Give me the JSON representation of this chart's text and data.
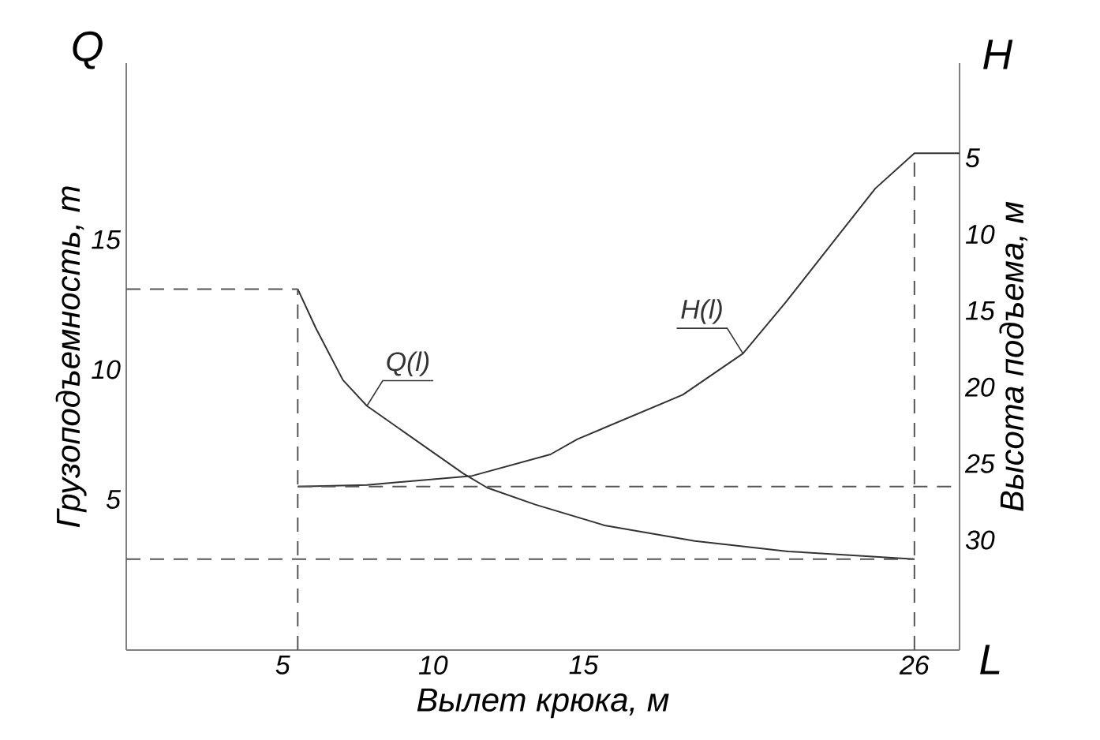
{
  "chart_data": {
    "type": "line",
    "xlabel": "Вылет крюка, м",
    "ylabel": "Грузоподъемность, т",
    "y2label": "Высота подъема, м",
    "annotations": [
      "Q",
      "H",
      "L"
    ],
    "xlim": [
      -0.2,
      27.5
    ],
    "ylim": [
      -0.8,
      21.8
    ],
    "y2lim": [
      37.2,
      -1.2
    ],
    "xticks": [
      5,
      10,
      15,
      26
    ],
    "yticks": [
      5,
      10,
      15
    ],
    "y2ticks": [
      5,
      10,
      15,
      20,
      25,
      30
    ],
    "series": [
      {
        "name": "Q(l)",
        "color": "#333333",
        "x": [
          5.5,
          6.1,
          7.0,
          7.8,
          11.0,
          11.8,
          13.4,
          15.7,
          18.7,
          21.8,
          26
        ],
        "values": [
          13.1,
          11.6,
          9.6,
          8.6,
          6.0,
          5.45,
          4.8,
          4.0,
          3.4,
          3.0,
          2.7
        ]
      },
      {
        "name": "H(l)",
        "color": "#333333",
        "axis": "y2",
        "x": [
          5.5,
          7.8,
          11.3,
          13.9,
          14.8,
          18.3,
          20.3,
          21.7,
          23.3,
          24.7,
          26,
          27.5
        ],
        "values": [
          26.5,
          26.4,
          25.8,
          24.4,
          23.4,
          20.5,
          17.8,
          14.5,
          10.5,
          7.0,
          4.7,
          4.7
        ]
      },
      {
        "color": "#555555",
        "line_style": "dashed",
        "x": [
          -0.2,
          5.5
        ],
        "values": [
          13.1,
          13.1
        ]
      },
      {
        "color": "#555555",
        "line_style": "dashed",
        "x": [
          -0.2,
          26
        ],
        "values": [
          2.7,
          2.7
        ]
      },
      {
        "color": "#555555",
        "line_style": "dashed",
        "x": [
          5.5,
          5.5
        ],
        "values": [
          -0.8,
          13.1
        ]
      },
      {
        "color": "#555555",
        "line_style": "dashed",
        "x": [
          26,
          26
        ],
        "values": [
          -0.8,
          18.3
        ]
      },
      {
        "color": "#555555",
        "line_style": "dashed",
        "axis": "y2",
        "x": [
          5.5,
          27.5
        ],
        "values": [
          26.5,
          26.5
        ]
      }
    ]
  }
}
